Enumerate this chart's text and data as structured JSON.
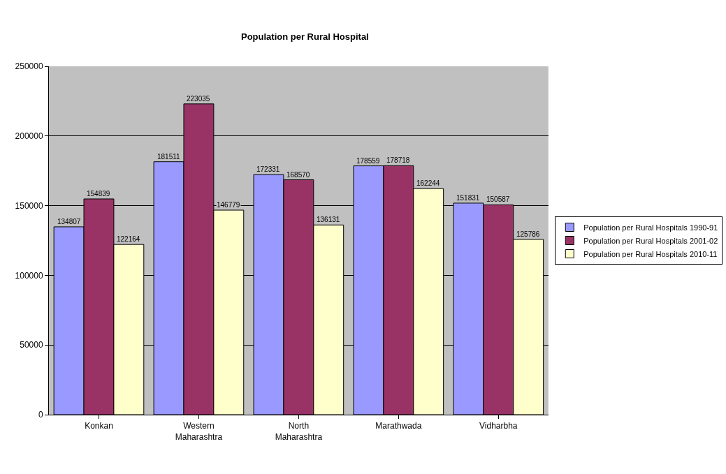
{
  "chart_data": {
    "type": "bar",
    "title": "Population per Rural Hospital",
    "categories": [
      "Konkan",
      "Western Maharashtra",
      "North Maharashtra",
      "Marathwada",
      "Vidharbha"
    ],
    "series": [
      {
        "name": "Population per Rural Hospitals 1990-91",
        "color": "#9999ff",
        "values": [
          134807,
          181511,
          172331,
          178559,
          151831
        ]
      },
      {
        "name": "Population per Rural Hospitals 2001-02",
        "color": "#993366",
        "values": [
          154839,
          223035,
          168570,
          178718,
          150587
        ]
      },
      {
        "name": "Population per Rural Hospitals 2010-11",
        "color": "#ffffcc",
        "values": [
          122164,
          146779,
          136131,
          162244,
          125786
        ]
      }
    ],
    "ylim": [
      0,
      250000
    ],
    "yticks": [
      0,
      50000,
      100000,
      150000,
      200000,
      250000
    ],
    "grid": "y",
    "legend": "right",
    "data_labels": true
  }
}
